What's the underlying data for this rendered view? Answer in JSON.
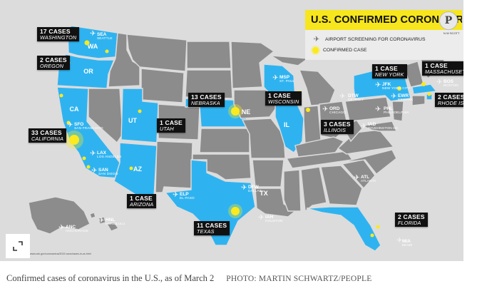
{
  "title": "U.S. CONFIRMED CORONAVIRUS CASES",
  "legend": {
    "airport": "AIRPORT SCREENING FOR CORONAVIRUS",
    "confirmed": "CONFIRMED CASE"
  },
  "credit_tag": "N W SCOTT",
  "source_line": "www.cdc.gov/coronavirus/2019-ncov/cases-in-us.html",
  "state_labels": {
    "wa": "WA",
    "or": "OR",
    "ca": "CA",
    "ut": "UT",
    "az": "AZ",
    "ne": "NE",
    "il": "IL",
    "tx": "TX"
  },
  "cases": {
    "washington": {
      "count": "17 CASES",
      "state": "WASHINGTON"
    },
    "oregon": {
      "count": "2 CASES",
      "state": "OREGON"
    },
    "california": {
      "count": "33 CASES",
      "state": "CALIFORNIA"
    },
    "utah": {
      "count": "1 CASE",
      "state": "UTAH"
    },
    "arizona": {
      "count": "1 CASE",
      "state": "ARIZONA"
    },
    "nebraska": {
      "count": "13 CASES",
      "state": "NEBRASKA"
    },
    "wisconsin": {
      "count": "1 CASE",
      "state": "WISCONSIN"
    },
    "illinois": {
      "count": "3 CASES",
      "state": "ILLINOIS"
    },
    "texas": {
      "count": "11 CASES",
      "state": "TEXAS"
    },
    "new_york": {
      "count": "1 CASE",
      "state": "NEW YORK"
    },
    "massachusetts": {
      "count": "1 CASE",
      "state": "MASSACHUSETTS"
    },
    "rhode_island": {
      "count": "2 CASES",
      "state": "RHODE ISLAND"
    },
    "florida": {
      "count": "2 CASES",
      "state": "FLORIDA"
    }
  },
  "airports": {
    "sea": {
      "code": "SEA",
      "city": "SEATTLE"
    },
    "sfo": {
      "code": "SFO",
      "city": "SAN FRANCISCO"
    },
    "lax": {
      "code": "LAX",
      "city": "LOS ANGELES"
    },
    "san": {
      "code": "SAN",
      "city": "SAN DIEGO"
    },
    "elp": {
      "code": "ELP",
      "city": "EL PASO"
    },
    "dfw": {
      "code": "DFW",
      "city": "DALLAS"
    },
    "iah": {
      "code": "IAH",
      "city": "HOUSTON"
    },
    "msp": {
      "code": "MSP",
      "city": "ST. PAUL"
    },
    "ord": {
      "code": "ORD",
      "city": "CHICAGO"
    },
    "dtw": {
      "code": "DTW",
      "city": "DETROIT"
    },
    "atl": {
      "code": "ATL",
      "city": "ATLANTA"
    },
    "iad": {
      "code": "IAD",
      "city": "WASHINGTON DC"
    },
    "phl": {
      "code": "PHL",
      "city": "PHILADELPHIA"
    },
    "ewr": {
      "code": "EWR",
      "city": "NEWARK"
    },
    "jfk": {
      "code": "JFK",
      "city": "NEW YORK CITY"
    },
    "bos": {
      "code": "BOS",
      "city": "BOSTON"
    },
    "mia": {
      "code": "MIA",
      "city": "MIAMI"
    },
    "anc": {
      "code": "ANC",
      "city": "ANCHORAGE"
    },
    "hnl": {
      "code": "HNL",
      "city": "HONOLULU"
    }
  },
  "caption": {
    "text": "Confirmed cases of coronavirus in the U.S., as of March 2",
    "photo_credit": "PHOTO: MARTIN SCHWARTZ/PEOPLE"
  },
  "colors": {
    "affected_state": "#2fb3f0",
    "unaffected_state": "#8c8c8c",
    "case_dot": "#fbea1e",
    "title_background": "#f7e61d"
  },
  "icons": {
    "pinterest": "pinterest-icon",
    "expand": "expand-icon",
    "airport": "airplane-icon"
  }
}
